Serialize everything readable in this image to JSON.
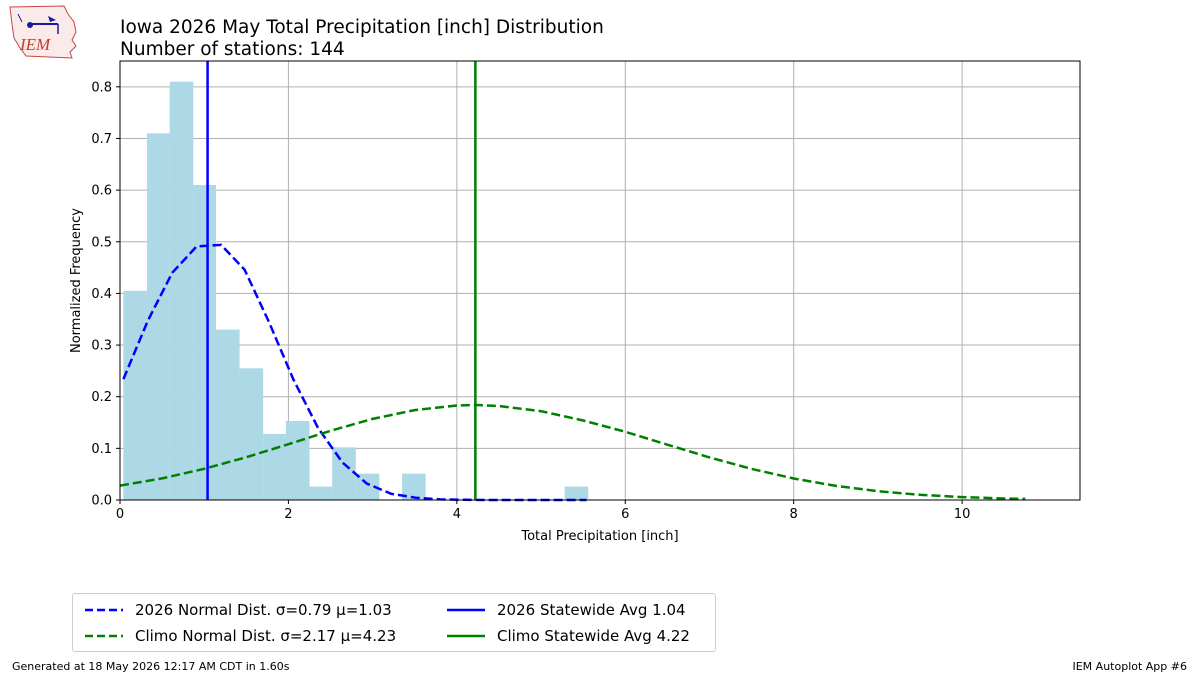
{
  "logo": {
    "text": "IEM"
  },
  "header": {
    "title": "Iowa 2026 May Total Precipitation [inch] Distribution",
    "subtitle": "Number of stations: 144"
  },
  "chart_data": {
    "type": "bar",
    "title": "Iowa 2026 May Total Precipitation [inch] Distribution",
    "subtitle": "Number of stations: 144",
    "xlabel": "Total Precipitation [inch]",
    "ylabel": "Normalized Frequency",
    "xlim": [
      0,
      11.4
    ],
    "ylim": [
      0,
      0.85
    ],
    "xticks": [
      0,
      2,
      4,
      6,
      8,
      10
    ],
    "yticks": [
      0.0,
      0.1,
      0.2,
      0.3,
      0.4,
      0.5,
      0.6,
      0.7,
      0.8
    ],
    "grid": true,
    "legend_position": "below plot, lower-left",
    "histogram": {
      "color": "#add8e6",
      "bins": [
        {
          "x0": 0.04,
          "x1": 0.32,
          "value": 0.405
        },
        {
          "x0": 0.32,
          "x1": 0.59,
          "value": 0.71
        },
        {
          "x0": 0.59,
          "x1": 0.87,
          "value": 0.81
        },
        {
          "x0": 0.87,
          "x1": 1.14,
          "value": 0.61
        },
        {
          "x0": 1.14,
          "x1": 1.42,
          "value": 0.33
        },
        {
          "x0": 1.42,
          "x1": 1.7,
          "value": 0.255
        },
        {
          "x0": 1.7,
          "x1": 1.97,
          "value": 0.128
        },
        {
          "x0": 1.97,
          "x1": 2.25,
          "value": 0.153
        },
        {
          "x0": 2.25,
          "x1": 2.52,
          "value": 0.026
        },
        {
          "x0": 2.52,
          "x1": 2.8,
          "value": 0.102
        },
        {
          "x0": 2.8,
          "x1": 3.08,
          "value": 0.051
        },
        {
          "x0": 3.08,
          "x1": 3.35,
          "value": 0.0
        },
        {
          "x0": 3.35,
          "x1": 3.63,
          "value": 0.051
        },
        {
          "x0": 3.63,
          "x1": 3.9,
          "value": 0.0
        },
        {
          "x0": 3.9,
          "x1": 4.18,
          "value": 0.0
        },
        {
          "x0": 4.18,
          "x1": 4.46,
          "value": 0.0
        },
        {
          "x0": 4.46,
          "x1": 4.73,
          "value": 0.0
        },
        {
          "x0": 4.73,
          "x1": 5.01,
          "value": 0.0
        },
        {
          "x0": 5.01,
          "x1": 5.28,
          "value": 0.0
        },
        {
          "x0": 5.28,
          "x1": 5.56,
          "value": 0.026
        }
      ]
    },
    "series": [
      {
        "name": "2026 Normal Dist. σ=0.79 μ=1.03",
        "kind": "curve",
        "color": "#0000ff",
        "dashed": true,
        "x": [
          0.04,
          0.33,
          0.62,
          0.91,
          1.2,
          1.48,
          1.77,
          2.06,
          2.35,
          2.64,
          2.93,
          3.22,
          3.51,
          3.8,
          4.09,
          4.38,
          4.67,
          4.96,
          5.25,
          5.54
        ],
        "y": [
          0.234,
          0.347,
          0.44,
          0.491,
          0.494,
          0.446,
          0.344,
          0.233,
          0.14,
          0.073,
          0.032,
          0.012,
          0.0044,
          0.0012,
          0.0003,
          0.0,
          0.0,
          0.0,
          0.0,
          0.0
        ]
      },
      {
        "name": "Climo Normal Dist. σ=2.17 μ=4.23",
        "kind": "curve",
        "color": "#008000",
        "dashed": true,
        "x": [
          0.0,
          0.5,
          1.0,
          1.5,
          2.0,
          2.5,
          3.0,
          3.5,
          4.0,
          4.23,
          4.5,
          5.0,
          5.5,
          6.0,
          6.5,
          7.0,
          7.5,
          8.0,
          8.5,
          9.0,
          9.5,
          10.0,
          10.5,
          10.75
        ],
        "y": [
          0.0278,
          0.0418,
          0.0604,
          0.0829,
          0.108,
          0.134,
          0.157,
          0.174,
          0.183,
          0.184,
          0.182,
          0.172,
          0.154,
          0.132,
          0.107,
          0.0824,
          0.0602,
          0.0416,
          0.0273,
          0.017,
          0.01,
          0.0056,
          0.003,
          0.0021
        ]
      },
      {
        "name": "2026 Statewide Avg 1.04",
        "kind": "vline",
        "color": "#0000ff",
        "x": 1.04
      },
      {
        "name": "Climo Statewide Avg 4.22",
        "kind": "vline",
        "color": "#008000",
        "x": 4.22
      }
    ]
  },
  "footer": {
    "left": "Generated at 18 May 2026 12:17 AM CDT in 1.60s",
    "right": "IEM Autoplot App #6"
  }
}
